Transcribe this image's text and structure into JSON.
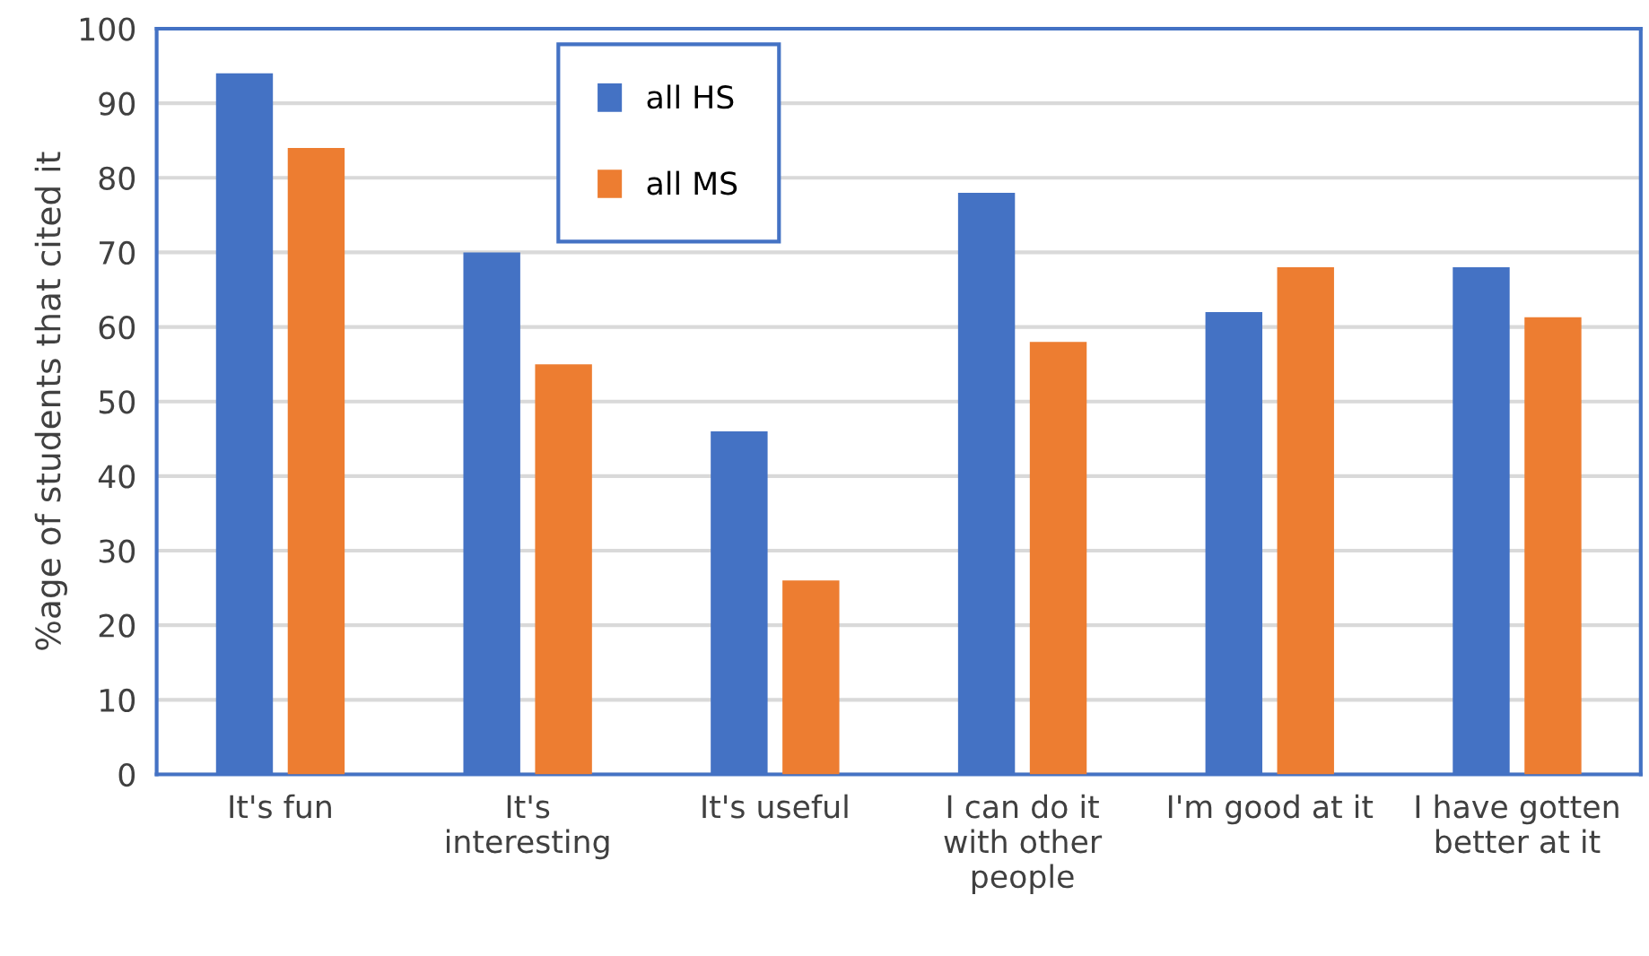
{
  "chart_data": {
    "type": "bar",
    "ylabel": "%age of students that cited it",
    "categories": [
      "It's fun",
      "It's\ninteresting",
      "It's useful",
      "I can do it\nwith other\npeople",
      "I'm good at it",
      "I have gotten\nbetter at it"
    ],
    "series": [
      {
        "name": "all HS",
        "color": "#4472c4",
        "values": [
          94,
          70,
          46,
          78,
          62,
          68
        ]
      },
      {
        "name": "all MS",
        "color": "#ed7d31",
        "values": [
          84,
          55,
          26,
          58,
          68,
          61.3
        ]
      }
    ],
    "ylim": [
      0,
      100
    ],
    "yticks": [
      0,
      10,
      20,
      30,
      40,
      50,
      60,
      70,
      80,
      90,
      100
    ],
    "grid": "y",
    "legend": "top"
  }
}
